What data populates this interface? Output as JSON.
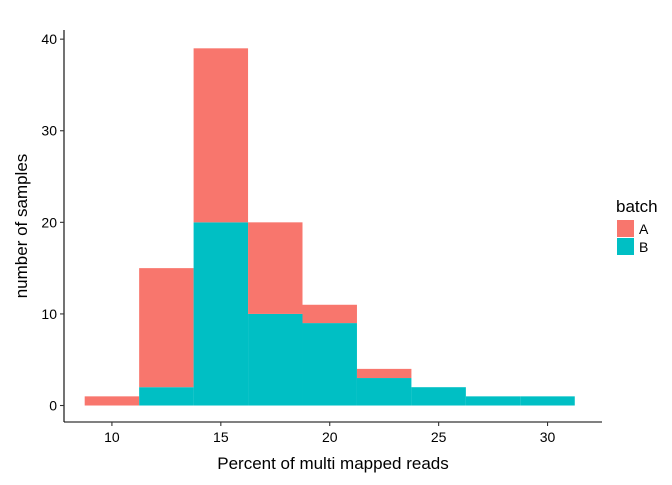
{
  "chart_data": {
    "type": "bar",
    "stacked": true,
    "title": "",
    "xlabel": "Percent of multi mapped reads",
    "ylabel": "number of samples",
    "xlim": [
      7.8,
      32.5
    ],
    "ylim": [
      -1.8,
      41
    ],
    "x_ticks": [
      10,
      15,
      20,
      25,
      30
    ],
    "y_ticks": [
      0,
      10,
      20,
      30,
      40
    ],
    "grid": false,
    "legend": {
      "title": "batch",
      "position": "right"
    },
    "bins": [
      {
        "x0": 8.75,
        "x1": 11.25
      },
      {
        "x0": 11.25,
        "x1": 13.75
      },
      {
        "x0": 13.75,
        "x1": 16.25
      },
      {
        "x0": 16.25,
        "x1": 18.75
      },
      {
        "x0": 18.75,
        "x1": 21.25
      },
      {
        "x0": 21.25,
        "x1": 23.75
      },
      {
        "x0": 23.75,
        "x1": 26.25
      },
      {
        "x0": 26.25,
        "x1": 28.75
      },
      {
        "x0": 28.75,
        "x1": 31.25
      }
    ],
    "series": [
      {
        "name": "A",
        "color": "#F8766D",
        "values": [
          1,
          13,
          19,
          10,
          2,
          1,
          0,
          0,
          0
        ]
      },
      {
        "name": "B",
        "color": "#00BFC4",
        "values": [
          0,
          2,
          20,
          10,
          9,
          3,
          2,
          1,
          1
        ]
      }
    ]
  }
}
